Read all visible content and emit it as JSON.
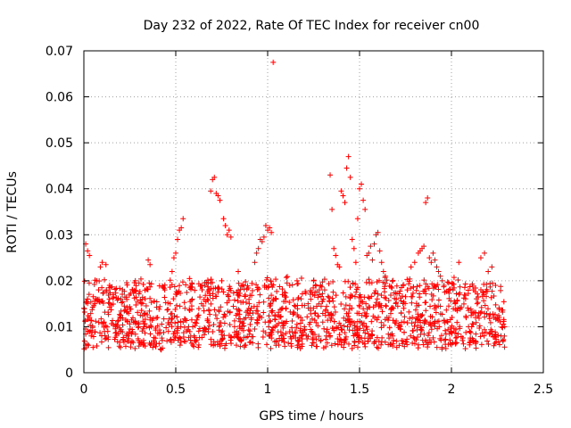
{
  "chart_data": {
    "type": "scatter",
    "title": "Day 232 of 2022, Rate Of TEC Index for receiver cn00",
    "xlabel": "GPS time / hours",
    "ylabel": "ROTI / TECUs",
    "xlim": [
      0,
      2.5
    ],
    "ylim": [
      0,
      0.07
    ],
    "x_ticks": [
      0,
      0.5,
      1,
      1.5,
      2,
      2.5
    ],
    "x_tick_labels": [
      "0",
      "0.5",
      "1",
      "1.5",
      "2",
      "2.5"
    ],
    "y_ticks": [
      0,
      0.01,
      0.02,
      0.03,
      0.04,
      0.05,
      0.06,
      0.07
    ],
    "y_tick_labels": [
      "0",
      "0.01",
      "0.02",
      "0.03",
      "0.04",
      "0.05",
      "0.06",
      "0.07"
    ],
    "grid": true,
    "marker": "+",
    "marker_color": "#ff0000",
    "series": [
      {
        "name": "ROTI",
        "points": [
          [
            0.0,
            0.014
          ],
          [
            0.01,
            0.0095
          ],
          [
            0.01,
            0.028
          ],
          [
            0.02,
            0.0265
          ],
          [
            0.03,
            0.0255
          ],
          [
            0.02,
            0.016
          ],
          [
            0.03,
            0.012
          ],
          [
            0.04,
            0.008
          ],
          [
            0.05,
            0.0055
          ],
          [
            0.06,
            0.015
          ],
          [
            0.07,
            0.02
          ],
          [
            0.08,
            0.018
          ],
          [
            0.09,
            0.023
          ],
          [
            0.1,
            0.024
          ],
          [
            0.12,
            0.0235
          ],
          [
            0.11,
            0.011
          ],
          [
            0.13,
            0.009
          ],
          [
            0.14,
            0.019
          ],
          [
            0.16,
            0.017
          ],
          [
            0.18,
            0.01
          ],
          [
            0.2,
            0.0125
          ],
          [
            0.22,
            0.0145
          ],
          [
            0.24,
            0.008
          ],
          [
            0.26,
            0.0115
          ],
          [
            0.28,
            0.02
          ],
          [
            0.3,
            0.0195
          ],
          [
            0.32,
            0.016
          ],
          [
            0.34,
            0.01
          ],
          [
            0.35,
            0.0245
          ],
          [
            0.36,
            0.0235
          ],
          [
            0.38,
            0.007
          ],
          [
            0.4,
            0.012
          ],
          [
            0.42,
            0.005
          ],
          [
            0.44,
            0.018
          ],
          [
            0.46,
            0.009
          ],
          [
            0.47,
            0.015
          ],
          [
            0.48,
            0.022
          ],
          [
            0.49,
            0.025
          ],
          [
            0.5,
            0.026
          ],
          [
            0.51,
            0.029
          ],
          [
            0.52,
            0.031
          ],
          [
            0.53,
            0.0315
          ],
          [
            0.54,
            0.0335
          ],
          [
            0.55,
            0.014
          ],
          [
            0.57,
            0.01
          ],
          [
            0.59,
            0.016
          ],
          [
            0.6,
            0.008
          ],
          [
            0.62,
            0.012
          ],
          [
            0.64,
            0.015
          ],
          [
            0.66,
            0.009
          ],
          [
            0.68,
            0.018
          ],
          [
            0.69,
            0.0395
          ],
          [
            0.7,
            0.042
          ],
          [
            0.71,
            0.0425
          ],
          [
            0.72,
            0.039
          ],
          [
            0.73,
            0.0385
          ],
          [
            0.74,
            0.0375
          ],
          [
            0.75,
            0.02
          ],
          [
            0.76,
            0.0335
          ],
          [
            0.77,
            0.032
          ],
          [
            0.78,
            0.03
          ],
          [
            0.79,
            0.031
          ],
          [
            0.8,
            0.0295
          ],
          [
            0.82,
            0.01
          ],
          [
            0.84,
            0.022
          ],
          [
            0.86,
            0.019
          ],
          [
            0.88,
            0.006
          ],
          [
            0.9,
            0.015
          ],
          [
            0.92,
            0.013
          ],
          [
            0.93,
            0.024
          ],
          [
            0.94,
            0.026
          ],
          [
            0.95,
            0.027
          ],
          [
            0.96,
            0.029
          ],
          [
            0.97,
            0.0285
          ],
          [
            0.98,
            0.0295
          ],
          [
            0.99,
            0.032
          ],
          [
            1.0,
            0.031
          ],
          [
            1.01,
            0.0315
          ],
          [
            1.02,
            0.0305
          ],
          [
            1.03,
            0.0675
          ],
          [
            1.04,
            0.01
          ],
          [
            1.06,
            0.006
          ],
          [
            1.08,
            0.017
          ],
          [
            1.1,
            0.014
          ],
          [
            1.12,
            0.019
          ],
          [
            1.14,
            0.008
          ],
          [
            1.16,
            0.02
          ],
          [
            1.18,
            0.012
          ],
          [
            1.2,
            0.01
          ],
          [
            1.22,
            0.015
          ],
          [
            1.24,
            0.009
          ],
          [
            1.26,
            0.013
          ],
          [
            1.28,
            0.017
          ],
          [
            1.3,
            0.011
          ],
          [
            1.32,
            0.008
          ],
          [
            1.34,
            0.043
          ],
          [
            1.35,
            0.0355
          ],
          [
            1.36,
            0.027
          ],
          [
            1.37,
            0.0255
          ],
          [
            1.38,
            0.0235
          ],
          [
            1.39,
            0.023
          ],
          [
            1.4,
            0.0395
          ],
          [
            1.41,
            0.0385
          ],
          [
            1.42,
            0.037
          ],
          [
            1.43,
            0.0445
          ],
          [
            1.44,
            0.047
          ],
          [
            1.45,
            0.0425
          ],
          [
            1.46,
            0.029
          ],
          [
            1.47,
            0.027
          ],
          [
            1.48,
            0.024
          ],
          [
            1.49,
            0.0335
          ],
          [
            1.5,
            0.04
          ],
          [
            1.51,
            0.041
          ],
          [
            1.52,
            0.0375
          ],
          [
            1.53,
            0.0355
          ],
          [
            1.54,
            0.0255
          ],
          [
            1.55,
            0.026
          ],
          [
            1.56,
            0.0275
          ],
          [
            1.57,
            0.0245
          ],
          [
            1.58,
            0.028
          ],
          [
            1.59,
            0.03
          ],
          [
            1.6,
            0.0305
          ],
          [
            1.61,
            0.0265
          ],
          [
            1.62,
            0.024
          ],
          [
            1.63,
            0.022
          ],
          [
            1.64,
            0.021
          ],
          [
            1.66,
            0.012
          ],
          [
            1.68,
            0.008
          ],
          [
            1.7,
            0.016
          ],
          [
            1.72,
            0.01
          ],
          [
            1.74,
            0.014
          ],
          [
            1.76,
            0.018
          ],
          [
            1.78,
            0.023
          ],
          [
            1.8,
            0.024
          ],
          [
            1.82,
            0.026
          ],
          [
            1.83,
            0.0265
          ],
          [
            1.84,
            0.027
          ],
          [
            1.85,
            0.0275
          ],
          [
            1.86,
            0.037
          ],
          [
            1.87,
            0.038
          ],
          [
            1.88,
            0.025
          ],
          [
            1.89,
            0.024
          ],
          [
            1.9,
            0.026
          ],
          [
            1.91,
            0.0245
          ],
          [
            1.92,
            0.023
          ],
          [
            1.93,
            0.022
          ],
          [
            1.94,
            0.021
          ],
          [
            1.95,
            0.02
          ],
          [
            1.96,
            0.019
          ],
          [
            1.98,
            0.011
          ],
          [
            2.0,
            0.009
          ],
          [
            2.02,
            0.015
          ],
          [
            2.04,
            0.024
          ],
          [
            2.06,
            0.007
          ],
          [
            2.08,
            0.012
          ],
          [
            2.1,
            0.009
          ],
          [
            2.12,
            0.018
          ],
          [
            2.14,
            0.015
          ],
          [
            2.16,
            0.025
          ],
          [
            2.18,
            0.026
          ],
          [
            2.2,
            0.022
          ],
          [
            2.22,
            0.023
          ],
          [
            2.24,
            0.019
          ],
          [
            2.26,
            0.012
          ],
          [
            2.27,
            0.008
          ],
          [
            2.28,
            0.007
          ],
          [
            2.29,
            0.01
          ]
        ],
        "dense_band": {
          "x_start": 0.0,
          "x_end": 2.29,
          "typical_range": [
            0.006,
            0.02
          ],
          "count": 1500
        }
      }
    ]
  }
}
